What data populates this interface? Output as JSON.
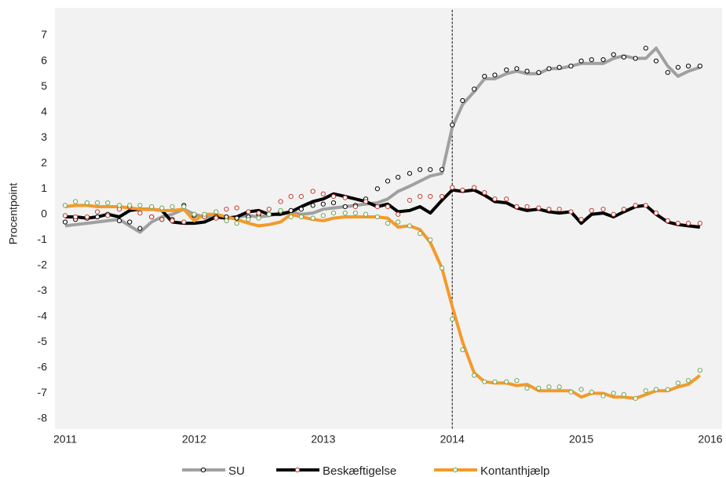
{
  "chart_data": {
    "type": "line",
    "y_label": "Procentpoint",
    "xlim": [
      2011,
      2016
    ],
    "xticks": [
      2011,
      2012,
      2013,
      2014,
      2015,
      2016
    ],
    "ylim": [
      -8.4,
      8.0
    ],
    "yticks": [
      -8,
      -7,
      -6,
      -5,
      -4,
      -3,
      -2,
      -1,
      0,
      1,
      2,
      3,
      4,
      5,
      6,
      7
    ],
    "vline": 2014,
    "grid": false,
    "legend": "bottom",
    "x": [
      2011.0,
      2011.08,
      2011.17,
      2011.25,
      2011.33,
      2011.42,
      2011.5,
      2011.58,
      2011.67,
      2011.75,
      2011.83,
      2011.92,
      2012.0,
      2012.08,
      2012.17,
      2012.25,
      2012.33,
      2012.42,
      2012.5,
      2012.58,
      2012.67,
      2012.75,
      2012.83,
      2012.92,
      2013.0,
      2013.08,
      2013.17,
      2013.25,
      2013.33,
      2013.42,
      2013.5,
      2013.58,
      2013.67,
      2013.75,
      2013.83,
      2013.92,
      2014.0,
      2014.08,
      2014.17,
      2014.25,
      2014.33,
      2014.42,
      2014.5,
      2014.58,
      2014.67,
      2014.75,
      2014.83,
      2014.92,
      2015.0,
      2015.08,
      2015.17,
      2015.25,
      2015.33,
      2015.42,
      2015.5,
      2015.58,
      2015.67,
      2015.75,
      2015.83,
      2015.92
    ],
    "series": [
      {
        "name": "SU",
        "color": "#a0a0a0",
        "marker_color": "#000000",
        "values": [
          -0.45,
          -0.4,
          -0.35,
          -0.3,
          -0.25,
          -0.2,
          -0.45,
          -0.7,
          -0.3,
          -0.1,
          0.0,
          0.2,
          0.0,
          -0.1,
          -0.1,
          -0.15,
          -0.1,
          -0.05,
          -0.1,
          -0.05,
          0.05,
          0.1,
          0.0,
          0.05,
          0.2,
          0.25,
          0.3,
          0.35,
          0.4,
          0.45,
          0.6,
          0.9,
          1.1,
          1.3,
          1.5,
          1.6,
          3.4,
          4.3,
          4.8,
          5.3,
          5.3,
          5.5,
          5.6,
          5.5,
          5.5,
          5.7,
          5.7,
          5.8,
          5.9,
          5.9,
          5.9,
          6.1,
          6.2,
          6.1,
          6.1,
          6.5,
          5.8,
          5.4,
          5.6,
          5.75
        ],
        "markers": [
          -0.3,
          -0.2,
          -0.15,
          -0.1,
          0.0,
          -0.25,
          -0.3,
          -0.55,
          -0.1,
          -0.2,
          -0.2,
          0.35,
          -0.05,
          -0.1,
          -0.1,
          -0.1,
          -0.15,
          -0.1,
          0.0,
          0.0,
          0.1,
          0.15,
          0.2,
          0.35,
          0.4,
          0.45,
          0.3,
          0.35,
          0.6,
          1.0,
          1.3,
          1.45,
          1.6,
          1.75,
          1.75,
          1.75,
          3.5,
          4.45,
          4.9,
          5.4,
          5.45,
          5.65,
          5.7,
          5.6,
          5.55,
          5.7,
          5.75,
          5.8,
          6.0,
          6.05,
          6.05,
          6.25,
          6.15,
          6.1,
          6.5,
          6.0,
          5.55,
          5.75,
          5.8,
          5.8
        ]
      },
      {
        "name": "Beskæftigelse",
        "color": "#000000",
        "marker_color": "#c0392b",
        "values": [
          -0.1,
          -0.1,
          -0.15,
          -0.1,
          0.0,
          -0.1,
          0.15,
          0.2,
          0.2,
          0.15,
          -0.3,
          -0.35,
          -0.35,
          -0.3,
          -0.1,
          -0.15,
          -0.1,
          0.1,
          0.15,
          0.0,
          0.0,
          0.1,
          0.3,
          0.5,
          0.6,
          0.8,
          0.7,
          0.6,
          0.5,
          0.3,
          0.4,
          0.1,
          0.15,
          0.3,
          0.05,
          0.55,
          0.95,
          0.9,
          0.95,
          0.75,
          0.5,
          0.45,
          0.25,
          0.15,
          0.2,
          0.1,
          0.05,
          0.1,
          -0.35,
          0.0,
          0.05,
          -0.1,
          0.1,
          0.3,
          0.35,
          0.0,
          -0.3,
          -0.4,
          -0.45,
          -0.5
        ],
        "markers": [
          -0.05,
          -0.1,
          -0.1,
          0.1,
          -0.05,
          0.2,
          0.3,
          0.05,
          -0.1,
          -0.2,
          -0.25,
          -0.3,
          0.0,
          -0.1,
          -0.15,
          0.2,
          0.25,
          0.1,
          0.05,
          0.2,
          0.5,
          0.7,
          0.7,
          0.9,
          0.8,
          0.7,
          0.65,
          0.3,
          0.5,
          0.3,
          0.3,
          0.0,
          0.55,
          0.7,
          0.7,
          0.7,
          1.05,
          0.95,
          1.05,
          0.85,
          0.6,
          0.6,
          0.3,
          0.3,
          0.25,
          0.2,
          0.2,
          0.1,
          -0.2,
          0.15,
          0.2,
          0.0,
          0.2,
          0.35,
          0.35,
          0.05,
          -0.25,
          -0.35,
          -0.35,
          -0.35
        ]
      },
      {
        "name": "Kontanthjælp",
        "color": "#f39a2b",
        "marker_color": "#6aa84f",
        "values": [
          0.3,
          0.35,
          0.35,
          0.3,
          0.3,
          0.3,
          0.25,
          0.2,
          0.2,
          0.15,
          0.15,
          0.2,
          -0.25,
          0.0,
          0.0,
          -0.1,
          -0.2,
          -0.35,
          -0.45,
          -0.4,
          -0.3,
          0.0,
          -0.1,
          -0.2,
          -0.25,
          -0.15,
          -0.1,
          -0.1,
          -0.1,
          -0.1,
          -0.15,
          -0.5,
          -0.45,
          -0.6,
          -1.1,
          -2.1,
          -3.6,
          -5.0,
          -6.2,
          -6.55,
          -6.6,
          -6.6,
          -6.7,
          -6.65,
          -6.9,
          -6.9,
          -6.9,
          -6.9,
          -7.15,
          -7.0,
          -7.0,
          -7.15,
          -7.15,
          -7.2,
          -7.05,
          -6.9,
          -6.9,
          -6.75,
          -6.65,
          -6.3
        ],
        "markers": [
          0.35,
          0.5,
          0.45,
          0.45,
          0.45,
          0.35,
          0.35,
          0.35,
          0.3,
          0.25,
          0.3,
          0.3,
          0.0,
          0.0,
          0.1,
          -0.25,
          -0.35,
          -0.2,
          -0.15,
          0.0,
          0.15,
          -0.1,
          -0.1,
          -0.15,
          -0.05,
          0.05,
          0.05,
          0.05,
          0.0,
          -0.1,
          -0.35,
          -0.3,
          -0.45,
          -0.75,
          -1.0,
          -2.1,
          -4.1,
          -5.3,
          -6.3,
          -6.55,
          -6.55,
          -6.55,
          -6.5,
          -6.8,
          -6.8,
          -6.75,
          -6.75,
          -6.95,
          -6.85,
          -6.95,
          -7.1,
          -7.0,
          -7.05,
          -7.2,
          -6.9,
          -6.85,
          -6.85,
          -6.6,
          -6.5,
          -6.1
        ]
      }
    ]
  }
}
